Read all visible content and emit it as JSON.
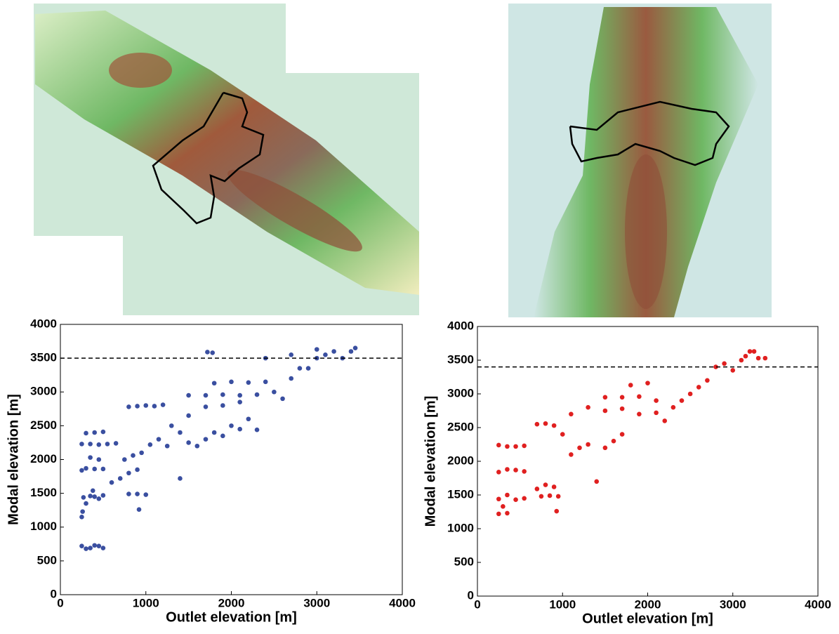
{
  "chart_data": [
    {
      "type": "scatter",
      "xlabel": "Outlet elevation [m]",
      "ylabel": "Modal elevation [m]",
      "xlim": [
        0,
        4000
      ],
      "ylim": [
        0,
        4000
      ],
      "xticks": [
        0,
        1000,
        2000,
        3000,
        4000
      ],
      "yticks": [
        0,
        500,
        1000,
        1500,
        2000,
        2500,
        3000,
        3500,
        4000
      ],
      "reference_line": 3500,
      "series": [
        {
          "color": "#3a4fa0",
          "x": [
            250,
            300,
            350,
            400,
            450,
            500,
            250,
            260,
            300,
            350,
            270,
            400,
            450,
            500,
            380,
            250,
            300,
            400,
            500,
            350,
            450,
            250,
            350,
            450,
            550,
            650,
            300,
            400,
            500,
            600,
            700,
            800,
            900,
            800,
            900,
            1000,
            920,
            750,
            850,
            950,
            1050,
            1150,
            1250,
            1400,
            800,
            900,
            1000,
            1100,
            1200,
            1300,
            1400,
            1500,
            1600,
            1700,
            1800,
            1900,
            2000,
            2100,
            2200,
            2300,
            1500,
            1700,
            1900,
            2100,
            1500,
            1700,
            1900,
            2100,
            2300,
            1800,
            2000,
            2200,
            2400,
            2500,
            2600,
            2700,
            2800,
            2900,
            3000,
            3100,
            3200,
            3300,
            3400,
            3450,
            1720,
            1780,
            2400,
            2700,
            3000
          ],
          "values": [
            720,
            680,
            690,
            730,
            720,
            690,
            1150,
            1230,
            1350,
            1460,
            1440,
            1450,
            1420,
            1470,
            1540,
            1840,
            1870,
            1860,
            1860,
            2030,
            2000,
            2230,
            2230,
            2220,
            2230,
            2240,
            2390,
            2400,
            2410,
            1660,
            1720,
            1800,
            1850,
            1490,
            1490,
            1480,
            1260,
            2000,
            2060,
            2100,
            2220,
            2300,
            2200,
            1720,
            2780,
            2790,
            2800,
            2790,
            2810,
            2500,
            2400,
            2250,
            2200,
            2300,
            2400,
            2350,
            2500,
            2450,
            2600,
            2440,
            2650,
            2780,
            2800,
            2850,
            2950,
            2950,
            2960,
            2950,
            2960,
            3130,
            3150,
            3140,
            3150,
            3000,
            2900,
            3200,
            3350,
            3350,
            3500,
            3550,
            3600,
            3500,
            3600,
            3650,
            3590,
            3580,
            3500,
            3550,
            3630
          ]
        }
      ]
    },
    {
      "type": "scatter",
      "xlabel": "Outlet elevation [m]",
      "ylabel": "Modal elevation [m]",
      "xlim": [
        0,
        4000
      ],
      "ylim": [
        0,
        4000
      ],
      "xticks": [
        0,
        1000,
        2000,
        3000,
        4000
      ],
      "yticks": [
        0,
        500,
        1000,
        1500,
        2000,
        2500,
        3000,
        3500,
        4000
      ],
      "reference_line": 3400,
      "series": [
        {
          "color": "#e02020",
          "x": [
            250,
            350,
            300,
            930,
            250,
            350,
            450,
            550,
            250,
            350,
            450,
            550,
            250,
            350,
            450,
            550,
            700,
            800,
            900,
            750,
            850,
            950,
            700,
            800,
            900,
            1000,
            1100,
            1200,
            1300,
            1400,
            1500,
            1600,
            1700,
            1100,
            1300,
            1500,
            1700,
            1900,
            2100,
            1500,
            1700,
            1900,
            2100,
            1800,
            2000,
            2200,
            2300,
            2400,
            2500,
            2600,
            2700,
            2800,
            2900,
            3000,
            3100,
            3150,
            3200,
            3300,
            3380,
            3250
          ],
          "values": [
            1220,
            1230,
            1330,
            1260,
            1440,
            1500,
            1430,
            1450,
            1840,
            1880,
            1870,
            1850,
            2240,
            2220,
            2220,
            2230,
            1590,
            1650,
            1620,
            1480,
            1490,
            1480,
            2550,
            2560,
            2530,
            2400,
            2100,
            2200,
            2250,
            1700,
            2200,
            2300,
            2400,
            2700,
            2800,
            2750,
            2780,
            2700,
            2720,
            2950,
            2950,
            2960,
            2900,
            3130,
            3160,
            2600,
            2800,
            2900,
            3000,
            3100,
            3200,
            3400,
            3450,
            3350,
            3500,
            3560,
            3630,
            3530,
            3530,
            3630
          ]
        }
      ]
    }
  ]
}
